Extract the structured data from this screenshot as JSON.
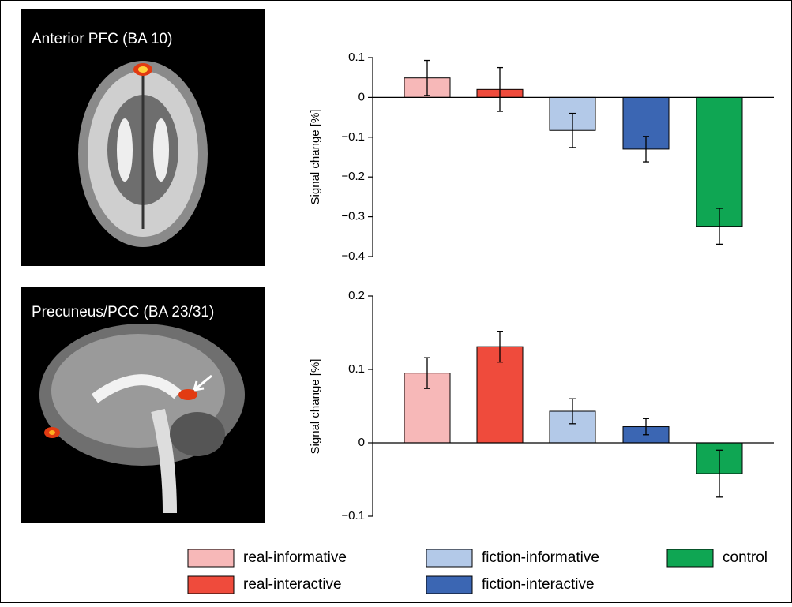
{
  "chart_data": [
    {
      "type": "bar",
      "image_label": "Anterior PFC (BA 10)",
      "ylabel": "Signal change [%]",
      "values": [
        0.049,
        0.02,
        -0.083,
        -0.13,
        -0.324
      ],
      "errors": [
        0.044,
        0.055,
        0.043,
        0.032,
        0.045
      ],
      "ylim": [
        -0.4,
        0.1
      ],
      "yticks": [
        0.1,
        0,
        {
          "value": -0.1,
          "label": "−0.1"
        },
        {
          "value": -0.2,
          "label": "−0.2"
        },
        {
          "value": -0.3,
          "label": "−0.3"
        },
        {
          "value": -0.4,
          "label": "−0.4"
        }
      ]
    },
    {
      "type": "bar",
      "image_label": "Precuneus/PCC (BA 23/31)",
      "ylabel": "Signal change [%]",
      "values": [
        0.095,
        0.131,
        0.043,
        0.022,
        -0.042
      ],
      "errors": [
        0.021,
        0.021,
        0.017,
        0.011,
        0.032
      ],
      "ylim": [
        -0.1,
        0.2
      ],
      "yticks": [
        0.2,
        0.1,
        0,
        {
          "value": -0.1,
          "label": "−0.1"
        }
      ]
    }
  ],
  "legend": {
    "entries": [
      {
        "name": "real-informative",
        "color": "#f7b8b8"
      },
      {
        "name": "real-interactive",
        "color": "#ef4b3c"
      },
      {
        "name": "fiction-informative",
        "color": "#b3c9e8"
      },
      {
        "name": "fiction-interactive",
        "color": "#3b66b3"
      },
      {
        "name": "control",
        "color": "#0fa653"
      }
    ]
  }
}
